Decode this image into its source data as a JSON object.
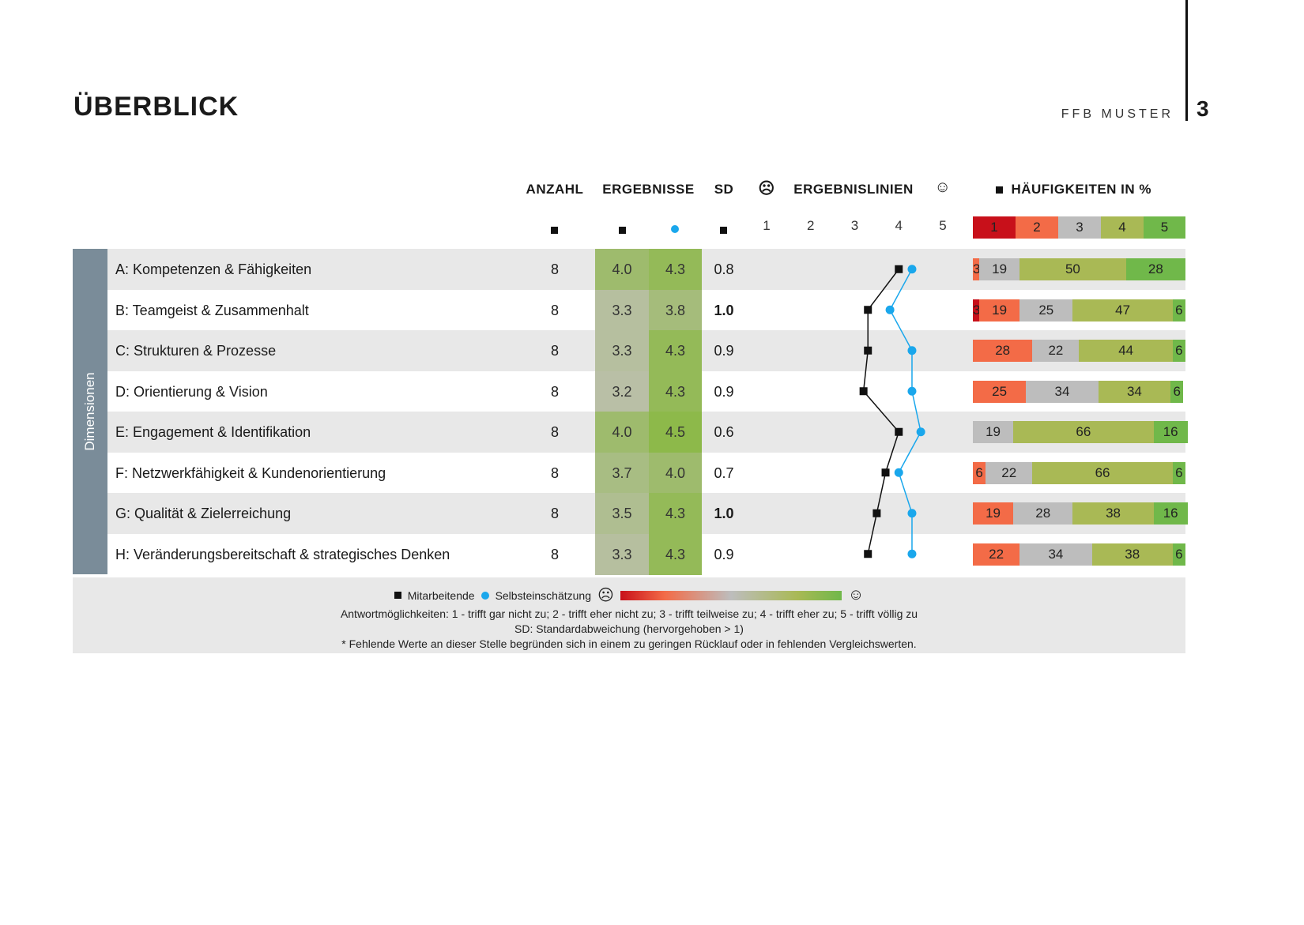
{
  "header": {
    "title": "ÜBERBLICK",
    "brand": "FFB MUSTER",
    "page": "3"
  },
  "columns": {
    "anzahl": "ANZAHL",
    "ergebnisse": "ERGEBNISSE",
    "sd": "SD",
    "lines": "ERGEBNISLINIEN",
    "freq": "HÄUFIGKEITEN IN %",
    "scale": [
      "1",
      "2",
      "3",
      "4",
      "5"
    ]
  },
  "sidebar_label": "Dimensionen",
  "colors": {
    "mitarbeitende": "#111111",
    "selbst": "#1aa7ec",
    "freq": [
      "#c8101a",
      "#f36b47",
      "#bdbdbd",
      "#a9b955",
      "#70b84a"
    ]
  },
  "rows": [
    {
      "label": "A: Kompetenzen & Fähigkeiten",
      "n": "8",
      "m": "4.0",
      "s": "4.3",
      "sd": "0.8",
      "sd_bold": false,
      "freq": [
        0,
        3,
        19,
        50,
        28
      ]
    },
    {
      "label": "B: Teamgeist & Zusammenhalt",
      "n": "8",
      "m": "3.3",
      "s": "3.8",
      "sd": "1.0",
      "sd_bold": true,
      "freq": [
        3,
        19,
        25,
        47,
        6
      ]
    },
    {
      "label": "C: Strukturen & Prozesse",
      "n": "8",
      "m": "3.3",
      "s": "4.3",
      "sd": "0.9",
      "sd_bold": false,
      "freq": [
        0,
        28,
        22,
        44,
        6
      ]
    },
    {
      "label": "D: Orientierung & Vision",
      "n": "8",
      "m": "3.2",
      "s": "4.3",
      "sd": "0.9",
      "sd_bold": false,
      "freq": [
        0,
        25,
        34,
        34,
        6
      ]
    },
    {
      "label": "E: Engagement & Identifikation",
      "n": "8",
      "m": "4.0",
      "s": "4.5",
      "sd": "0.6",
      "sd_bold": false,
      "freq": [
        0,
        0,
        19,
        66,
        16
      ]
    },
    {
      "label": "F: Netzwerkfähigkeit & Kundenorientierung",
      "n": "8",
      "m": "3.7",
      "s": "4.0",
      "sd": "0.7",
      "sd_bold": false,
      "freq": [
        0,
        6,
        22,
        66,
        6
      ]
    },
    {
      "label": "G: Qualität & Zielerreichung",
      "n": "8",
      "m": "3.5",
      "s": "4.3",
      "sd": "1.0",
      "sd_bold": true,
      "freq": [
        0,
        19,
        28,
        38,
        16
      ]
    },
    {
      "label": "H: Veränderungsbereitschaft & strategisches Denken",
      "n": "8",
      "m": "3.3",
      "s": "4.3",
      "sd": "0.9",
      "sd_bold": false,
      "freq": [
        0,
        22,
        34,
        38,
        6
      ]
    }
  ],
  "legend": {
    "mitarbeitende": "Mitarbeitende",
    "selbst": "Selbsteinschätzung",
    "line1": "Antwortmöglichkeiten: 1 - trifft gar nicht zu; 2 - trifft eher nicht zu; 3 - trifft teilweise zu; 4 - trifft eher zu; 5 - trifft völlig zu",
    "line2": "SD: Standardabweichung (hervorgehoben > 1)",
    "line3": "* Fehlende Werte an dieser Stelle begründen sich in einem zu geringen Rücklauf oder in fehlenden Vergleichswerten."
  }
}
